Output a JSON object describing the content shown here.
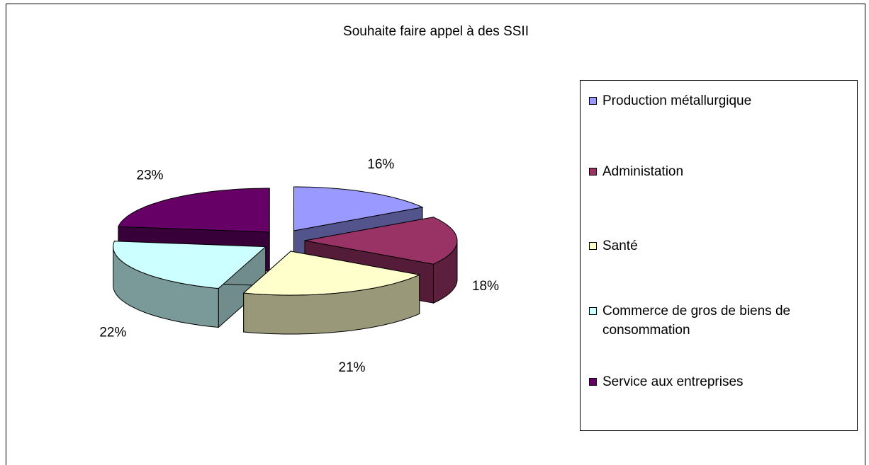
{
  "chart_data": {
    "type": "pie",
    "title": "Souhaite faire appel à des SSII",
    "categories": [
      "Production métallurgique",
      "Administation",
      "Santé",
      "Commerce de gros de biens de consommation",
      "Service aux entreprises"
    ],
    "values": [
      16,
      18,
      21,
      22,
      23
    ],
    "value_labels": [
      "16%",
      "18%",
      "21%",
      "22%",
      "23%"
    ],
    "colors": [
      "#9999ff",
      "#993366",
      "#ffffcc",
      "#ccffff",
      "#660066"
    ],
    "legend": "right"
  }
}
